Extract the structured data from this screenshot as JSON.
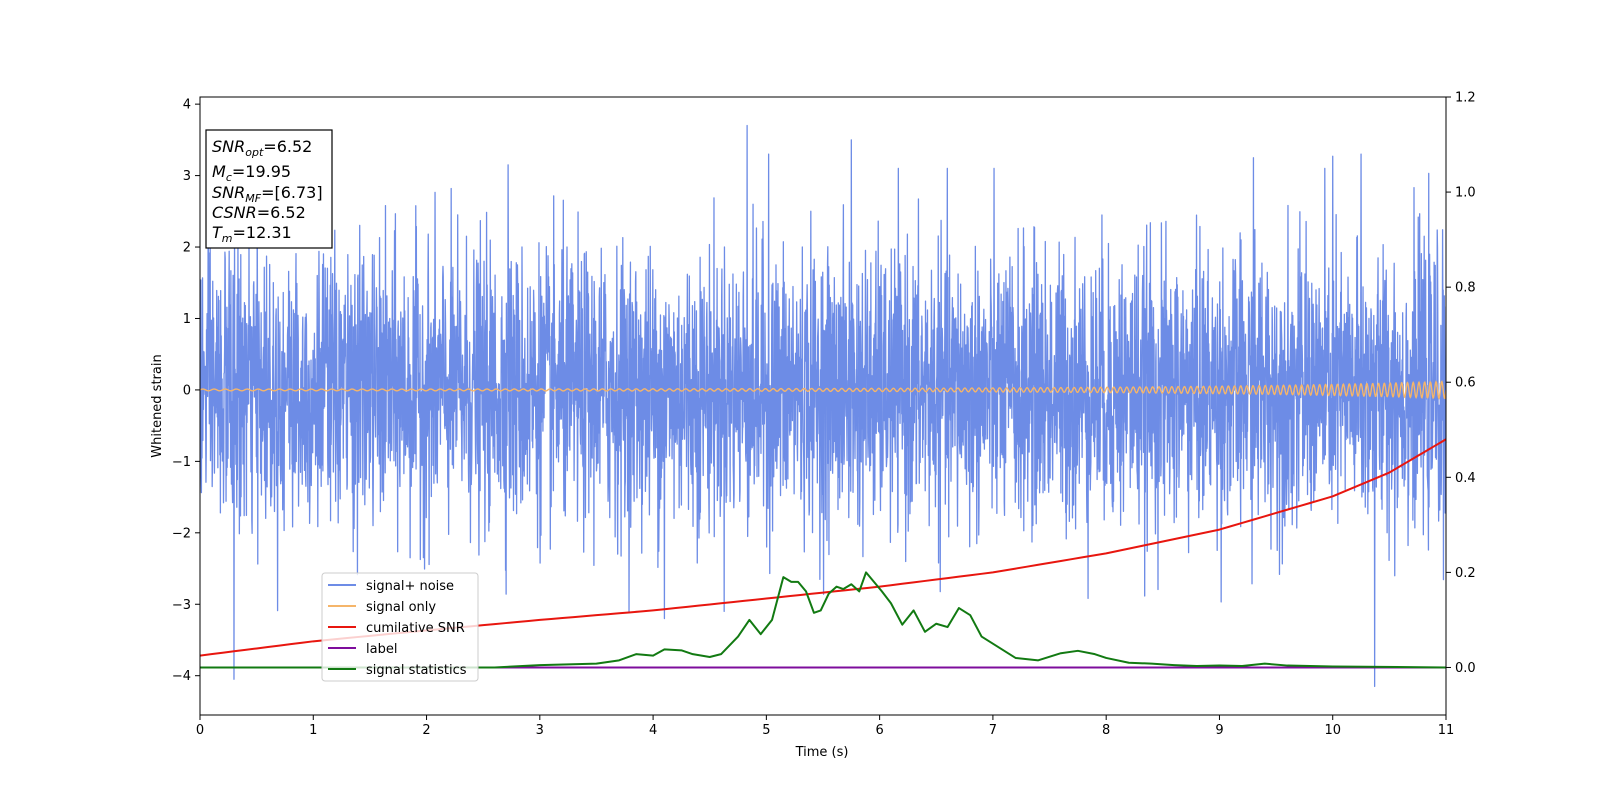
{
  "chart_data": {
    "type": "line",
    "title": "",
    "xlabel": "Time (s)",
    "ylabel": "Whitened strain",
    "xlim": [
      0,
      11
    ],
    "ylim_left": [
      -4.55,
      4.1
    ],
    "ylim_right": [
      -0.1,
      1.2
    ],
    "x_ticks": [
      0,
      1,
      2,
      3,
      4,
      5,
      6,
      7,
      8,
      9,
      10,
      11
    ],
    "x_tick_labels": [
      "0",
      "1",
      "2",
      "3",
      "4",
      "5",
      "6",
      "7",
      "8",
      "9",
      "10",
      "11"
    ],
    "y_left_ticks": [
      4,
      3,
      2,
      1,
      0,
      -1,
      -2,
      -3,
      -4
    ],
    "y_left_tick_labels": [
      "4",
      "3",
      "2",
      "1",
      "0",
      "−1",
      "−2",
      "−3",
      "−4"
    ],
    "y_right_ticks": [
      1.2,
      1.0,
      0.8,
      0.6,
      0.4,
      0.2,
      0.0
    ],
    "y_right_tick_labels": [
      "1.2",
      "1.0",
      "0.8",
      "0.6",
      "0.4",
      "0.2",
      "0.0"
    ],
    "grid": false,
    "legend_position": "lower-left",
    "series": [
      {
        "name": "signal+ noise",
        "axis": "left",
        "color": "#6d8ce6",
        "kind": "gaussian-noise",
        "std": 0.95,
        "t_range": [
          0,
          11
        ],
        "samples": 4400,
        "spikes": [
          [
            4.83,
            3.7
          ],
          [
            5.75,
            3.5
          ],
          [
            0.3,
            -4.05
          ],
          [
            10.37,
            -4.15
          ],
          [
            4.1,
            -3.2
          ],
          [
            5.02,
            3.3
          ],
          [
            9.3,
            3.25
          ],
          [
            10.0,
            3.27
          ],
          [
            10.25,
            3.3
          ],
          [
            2.72,
            3.15
          ]
        ]
      },
      {
        "name": "signal only",
        "axis": "left",
        "color": "#f5b56a",
        "kind": "chirp",
        "t_range": [
          0,
          11
        ],
        "amp_start": 0.012,
        "amp_end": 0.12,
        "freq_start": 10,
        "freq_end": 20
      },
      {
        "name": "cumilative SNR",
        "axis": "right",
        "color": "#e8160f",
        "x": [
          0,
          1,
          2,
          3,
          4,
          5,
          6,
          7,
          8,
          9,
          10,
          10.5,
          11
        ],
        "y": [
          0.025,
          0.055,
          0.078,
          0.1,
          0.12,
          0.145,
          0.17,
          0.2,
          0.24,
          0.29,
          0.36,
          0.41,
          0.48
        ]
      },
      {
        "name": "label",
        "axis": "right",
        "color": "#7e0d9c",
        "x": [
          0,
          11
        ],
        "y": [
          0.0,
          0.0
        ]
      },
      {
        "name": "signal statistics",
        "axis": "right",
        "color": "#127a12",
        "x": [
          0,
          2.6,
          3.0,
          3.5,
          3.7,
          3.85,
          4.0,
          4.1,
          4.25,
          4.35,
          4.5,
          4.6,
          4.75,
          4.85,
          4.95,
          5.05,
          5.15,
          5.22,
          5.28,
          5.35,
          5.42,
          5.48,
          5.55,
          5.62,
          5.68,
          5.75,
          5.82,
          5.88,
          5.95,
          6.02,
          6.1,
          6.2,
          6.3,
          6.4,
          6.5,
          6.6,
          6.7,
          6.8,
          6.9,
          7.0,
          7.2,
          7.4,
          7.6,
          7.75,
          7.9,
          8.0,
          8.2,
          8.4,
          8.6,
          8.8,
          9.0,
          9.2,
          9.4,
          9.6,
          10.0,
          11.0
        ],
        "y": [
          0.0,
          0.0,
          0.005,
          0.008,
          0.015,
          0.028,
          0.025,
          0.038,
          0.036,
          0.028,
          0.022,
          0.028,
          0.065,
          0.1,
          0.07,
          0.1,
          0.19,
          0.18,
          0.18,
          0.16,
          0.115,
          0.12,
          0.155,
          0.17,
          0.165,
          0.175,
          0.16,
          0.2,
          0.18,
          0.16,
          0.135,
          0.09,
          0.12,
          0.075,
          0.092,
          0.085,
          0.125,
          0.11,
          0.065,
          0.05,
          0.02,
          0.015,
          0.03,
          0.035,
          0.028,
          0.02,
          0.01,
          0.008,
          0.005,
          0.003,
          0.004,
          0.003,
          0.008,
          0.004,
          0.002,
          0.0
        ]
      }
    ],
    "annotation": {
      "lines": [
        {
          "base": "SNR",
          "sub": "opt",
          "value": "=6.52"
        },
        {
          "base": "M",
          "sub": "c",
          "value": "=19.95"
        },
        {
          "base": "SNR",
          "sub": "MF",
          "value": "=[6.73]"
        },
        {
          "base": "CSNR",
          "sub": "",
          "value": "=6.52"
        },
        {
          "base": "T",
          "sub": "m",
          "value": "=12.31"
        }
      ]
    }
  }
}
